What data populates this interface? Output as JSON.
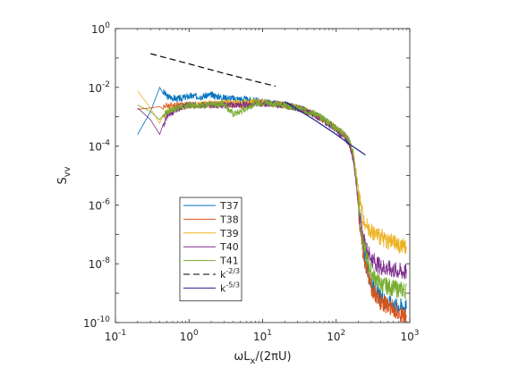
{
  "chart_data": {
    "type": "line",
    "title": "",
    "xlabel": "ωL_x/(2πU)",
    "ylabel": "S_vv",
    "xlabel_parts": {
      "a": "ωL",
      "sub": "x",
      "b": "/(2πU)"
    },
    "ylabel_parts": {
      "a": "S",
      "sub": "vv"
    },
    "xscale": "log",
    "yscale": "log",
    "xlim": [
      0.1,
      1000
    ],
    "ylim": [
      1e-10,
      1
    ],
    "grid": false,
    "legend_position": "lower-left",
    "x_ticks": [
      {
        "value": 0.1,
        "base": "10",
        "exp": "-1"
      },
      {
        "value": 1,
        "base": "10",
        "exp": "0"
      },
      {
        "value": 10,
        "base": "10",
        "exp": "1"
      },
      {
        "value": 100,
        "base": "10",
        "exp": "2"
      },
      {
        "value": 1000,
        "base": "10",
        "exp": "3"
      }
    ],
    "y_ticks": [
      {
        "value": 1e-10,
        "base": "10",
        "exp": "-10"
      },
      {
        "value": 1e-08,
        "base": "10",
        "exp": "-8"
      },
      {
        "value": 1e-06,
        "base": "10",
        "exp": "-6"
      },
      {
        "value": 0.0001,
        "base": "10",
        "exp": "-4"
      },
      {
        "value": 0.01,
        "base": "10",
        "exp": "-2"
      },
      {
        "value": 1,
        "base": "10",
        "exp": "0"
      }
    ],
    "series": [
      {
        "name": "T37",
        "color": "#0072BD",
        "style": "solid",
        "points": [
          [
            0.2,
            0.00025
          ],
          [
            0.3,
            0.0015
          ],
          [
            0.4,
            0.01
          ],
          [
            0.5,
            0.005
          ],
          [
            0.7,
            0.004
          ],
          [
            1,
            0.005
          ],
          [
            1.5,
            0.005
          ],
          [
            2,
            0.0055
          ],
          [
            3,
            0.0045
          ],
          [
            5,
            0.004
          ],
          [
            8,
            0.0035
          ],
          [
            12,
            0.003
          ],
          [
            20,
            0.0025
          ],
          [
            30,
            0.002
          ],
          [
            50,
            0.0013
          ],
          [
            70,
            0.0008
          ],
          [
            100,
            0.0004
          ],
          [
            130,
            0.00025
          ],
          [
            150,
            0.00015
          ],
          [
            170,
            5e-05
          ],
          [
            190,
            5e-06
          ],
          [
            210,
            3e-07
          ],
          [
            230,
            4e-08
          ],
          [
            260,
            7e-09
          ],
          [
            300,
            2e-09
          ],
          [
            400,
            7e-10
          ],
          [
            600,
            4e-10
          ],
          [
            900,
            3.5e-10
          ]
        ]
      },
      {
        "name": "T38",
        "color": "#D95319",
        "style": "solid",
        "points": [
          [
            0.2,
            0.0018
          ],
          [
            0.3,
            0.002
          ],
          [
            0.4,
            0.0022
          ],
          [
            0.6,
            0.0025
          ],
          [
            1,
            0.0025
          ],
          [
            2,
            0.0025
          ],
          [
            3,
            0.0028
          ],
          [
            5,
            0.0025
          ],
          [
            8,
            0.003
          ],
          [
            12,
            0.0028
          ],
          [
            20,
            0.0025
          ],
          [
            30,
            0.002
          ],
          [
            50,
            0.0012
          ],
          [
            70,
            0.0007
          ],
          [
            100,
            0.0004
          ],
          [
            130,
            0.00022
          ],
          [
            150,
            0.00012
          ],
          [
            170,
            4e-05
          ],
          [
            190,
            4e-06
          ],
          [
            210,
            2e-07
          ],
          [
            230,
            3e-08
          ],
          [
            260,
            6e-09
          ],
          [
            300,
            1.5e-09
          ],
          [
            400,
            5e-10
          ],
          [
            600,
            3e-10
          ],
          [
            900,
            1.5e-10
          ]
        ]
      },
      {
        "name": "T39",
        "color": "#EDB120",
        "style": "solid",
        "points": [
          [
            0.2,
            0.0075
          ],
          [
            0.3,
            0.002
          ],
          [
            0.4,
            0.0006
          ],
          [
            0.5,
            0.0015
          ],
          [
            0.7,
            0.002
          ],
          [
            1,
            0.0025
          ],
          [
            2,
            0.0028
          ],
          [
            3,
            0.003
          ],
          [
            5,
            0.0028
          ],
          [
            8,
            0.0032
          ],
          [
            12,
            0.003
          ],
          [
            20,
            0.0025
          ],
          [
            30,
            0.002
          ],
          [
            50,
            0.0013
          ],
          [
            70,
            0.0008
          ],
          [
            100,
            0.0004
          ],
          [
            130,
            0.00025
          ],
          [
            150,
            0.00015
          ],
          [
            170,
            6e-05
          ],
          [
            190,
            1e-05
          ],
          [
            210,
            1.5e-06
          ],
          [
            230,
            4e-07
          ],
          [
            260,
            2e-07
          ],
          [
            300,
            1.3e-07
          ],
          [
            400,
            8e-08
          ],
          [
            600,
            5e-08
          ],
          [
            900,
            3.5e-08
          ]
        ]
      },
      {
        "name": "T40",
        "color": "#7E2F8E",
        "style": "solid",
        "points": [
          [
            0.2,
            0.002
          ],
          [
            0.3,
            0.0008
          ],
          [
            0.4,
            0.00025
          ],
          [
            0.5,
            0.001
          ],
          [
            0.7,
            0.002
          ],
          [
            1,
            0.0025
          ],
          [
            2,
            0.0025
          ],
          [
            3,
            0.0025
          ],
          [
            5,
            0.0025
          ],
          [
            8,
            0.0028
          ],
          [
            12,
            0.0028
          ],
          [
            20,
            0.0025
          ],
          [
            30,
            0.002
          ],
          [
            50,
            0.0012
          ],
          [
            70,
            0.0007
          ],
          [
            100,
            0.00035
          ],
          [
            130,
            0.0002
          ],
          [
            150,
            0.00012
          ],
          [
            170,
            4e-05
          ],
          [
            190,
            4e-06
          ],
          [
            210,
            4e-07
          ],
          [
            230,
            8e-08
          ],
          [
            260,
            3e-08
          ],
          [
            300,
            1.5e-08
          ],
          [
            400,
            8e-09
          ],
          [
            600,
            6e-09
          ],
          [
            900,
            5e-09
          ]
        ]
      },
      {
        "name": "T41",
        "color": "#77AC30",
        "style": "solid",
        "points": [
          [
            0.2,
            0.0025
          ],
          [
            0.3,
            0.0015
          ],
          [
            0.4,
            0.0008
          ],
          [
            0.5,
            0.0015
          ],
          [
            0.7,
            0.002
          ],
          [
            1,
            0.0025
          ],
          [
            2,
            0.0025
          ],
          [
            3,
            0.0028
          ],
          [
            4,
            0.0012
          ],
          [
            5,
            0.0015
          ],
          [
            8,
            0.003
          ],
          [
            12,
            0.003
          ],
          [
            20,
            0.0025
          ],
          [
            30,
            0.002
          ],
          [
            50,
            0.0013
          ],
          [
            70,
            0.0008
          ],
          [
            100,
            0.0004
          ],
          [
            130,
            0.00025
          ],
          [
            150,
            0.00015
          ],
          [
            170,
            6e-05
          ],
          [
            190,
            6e-06
          ],
          [
            210,
            5e-07
          ],
          [
            230,
            6e-08
          ],
          [
            260,
            1.5e-08
          ],
          [
            300,
            5e-09
          ],
          [
            400,
            2e-09
          ],
          [
            600,
            1.5e-09
          ],
          [
            900,
            1.2e-09
          ]
        ]
      },
      {
        "name": "k^-2/3",
        "color": "#000000",
        "style": "dashed",
        "points": [
          [
            0.3,
            0.14
          ],
          [
            1,
            0.063
          ],
          [
            3,
            0.03
          ],
          [
            10,
            0.014
          ],
          [
            15,
            0.011
          ]
        ]
      },
      {
        "name": "k^-5/3",
        "color": "#1F1F8C",
        "style": "solid",
        "points": [
          [
            20,
            0.0033
          ],
          [
            50,
            0.0008
          ],
          [
            100,
            0.00025
          ],
          [
            150,
            0.00012
          ],
          [
            250,
            5e-05
          ]
        ]
      }
    ],
    "legend": [
      {
        "label": "T37",
        "base": "T37",
        "sup": ""
      },
      {
        "label": "T38",
        "base": "T38",
        "sup": ""
      },
      {
        "label": "T39",
        "base": "T39",
        "sup": ""
      },
      {
        "label": "T40",
        "base": "T40",
        "sup": ""
      },
      {
        "label": "T41",
        "base": "T41",
        "sup": ""
      },
      {
        "label": "k^-2/3",
        "base": "k",
        "sup": "-2/3"
      },
      {
        "label": "k^-5/3",
        "base": "k",
        "sup": "-5/3"
      }
    ]
  }
}
